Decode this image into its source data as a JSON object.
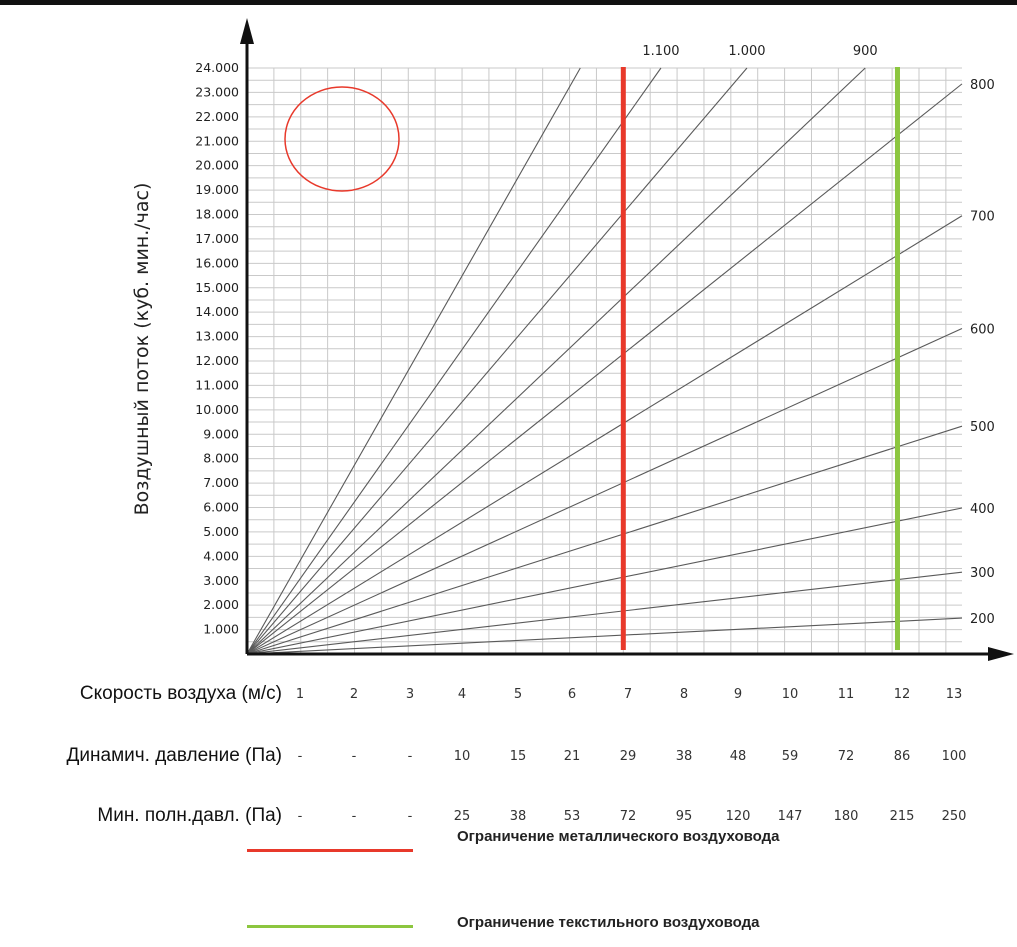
{
  "chart_data": {
    "type": "line",
    "title": "",
    "ylabel": "Воздушный поток  (куб. мин./час)",
    "xlim": [
      0,
      13.3
    ],
    "ylim": [
      0,
      24000
    ],
    "y_ticks": [
      "1.000",
      "2.000",
      "3.000",
      "4.000",
      "5.000",
      "6.000",
      "7.000",
      "8.000",
      "9.000",
      "10.000",
      "11.000",
      "12.000",
      "13.000",
      "14.000",
      "15.000",
      "16.000",
      "17.000",
      "18.000",
      "19.000",
      "20.000",
      "21.000",
      "22.000",
      "23.000",
      "24.000"
    ],
    "grid": true,
    "series": [
      {
        "name": "200",
        "x": [
          0,
          13.3
        ],
        "y": [
          0,
          1470
        ]
      },
      {
        "name": "300",
        "x": [
          0,
          13.3
        ],
        "y": [
          0,
          3350
        ]
      },
      {
        "name": "400",
        "x": [
          0,
          13.3
        ],
        "y": [
          0,
          5980
        ]
      },
      {
        "name": "500",
        "x": [
          0,
          13.3
        ],
        "y": [
          0,
          9330
        ]
      },
      {
        "name": "600",
        "x": [
          0,
          13.3
        ],
        "y": [
          0,
          13330
        ]
      },
      {
        "name": "700",
        "x": [
          0,
          13.3
        ],
        "y": [
          0,
          17950
        ]
      },
      {
        "name": "800",
        "x": [
          0,
          13.3
        ],
        "y": [
          0,
          23350
        ]
      },
      {
        "name": "900",
        "x": [
          0,
          11.5
        ],
        "y": [
          0,
          24000
        ]
      },
      {
        "name": "1.000",
        "x": [
          0,
          9.3
        ],
        "y": [
          0,
          24000
        ]
      },
      {
        "name": "1.100",
        "x": [
          0,
          7.7
        ],
        "y": [
          0,
          24000
        ]
      },
      {
        "name": "",
        "x": [
          0,
          6.2
        ],
        "y": [
          0,
          24000
        ]
      }
    ],
    "limits": [
      {
        "x": 7,
        "color": "#e8392b",
        "label": "Ограничение металлического воздуховода"
      },
      {
        "x": 12.1,
        "color": "#8cc63f",
        "label": "Ограничение текстильного воздуховода"
      }
    ],
    "table": {
      "rows": [
        {
          "label": "Скорость воздуха (м/с)",
          "values": [
            "1",
            "2",
            "3",
            "4",
            "5",
            "6",
            "7",
            "8",
            "9",
            "10",
            "11",
            "12",
            "13"
          ]
        },
        {
          "label": "Динамич. давление (Па)",
          "values": [
            "-",
            "-",
            "-",
            "10",
            "15",
            "21",
            "29",
            "38",
            "48",
            "59",
            "72",
            "86",
            "100"
          ]
        },
        {
          "label": "Мин. полн.давл. (Па)",
          "values": [
            "-",
            "-",
            "-",
            "25",
            "38",
            "53",
            "72",
            "95",
            "120",
            "147",
            "180",
            "215",
            "250"
          ]
        }
      ]
    },
    "colors": {
      "grid": "#c9c9c9",
      "line": "#5a5a5a",
      "axis": "#111111",
      "marker_circle": "#e8392b"
    }
  }
}
